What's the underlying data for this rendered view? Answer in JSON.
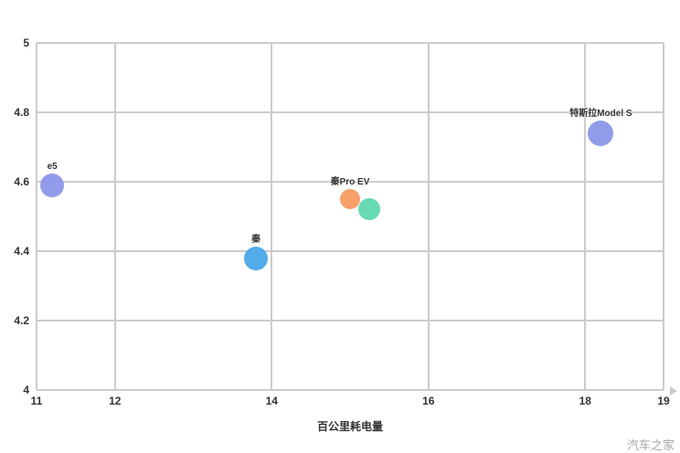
{
  "chart_data": {
    "type": "scatter",
    "title": "",
    "xlabel": "百公里耗电量",
    "ylabel": "",
    "xlim": [
      11,
      19
    ],
    "ylim": [
      4,
      5
    ],
    "grid": true,
    "legend_position": "none",
    "x_ticks": [
      {
        "label": "11",
        "value": 11
      },
      {
        "label": "12",
        "value": 12
      },
      {
        "label": "14",
        "value": 14
      },
      {
        "label": "16",
        "value": 16
      },
      {
        "label": "18",
        "value": 18
      },
      {
        "label": "19",
        "value": 19
      }
    ],
    "y_ticks": [
      {
        "label": "5",
        "value": 5.0
      },
      {
        "label": "4.8",
        "value": 4.8
      },
      {
        "label": "4.6",
        "value": 4.6
      },
      {
        "label": "4.4",
        "value": 4.4
      },
      {
        "label": "4.2",
        "value": 4.2
      },
      {
        "label": "4",
        "value": 4.0
      }
    ],
    "points": [
      {
        "label": "e5",
        "x": 11.2,
        "y": 4.59,
        "r": 13,
        "color": "#8c96e8"
      },
      {
        "label": "秦",
        "x": 13.8,
        "y": 4.38,
        "r": 13,
        "color": "#4aa6e8"
      },
      {
        "label": "秦Pro EV",
        "x": 15.0,
        "y": 4.55,
        "r": 11,
        "color": "#f79b61"
      },
      {
        "label": "",
        "x": 15.25,
        "y": 4.52,
        "r": 12,
        "color": "#5fd8b0"
      },
      {
        "label": "特斯拉Model S",
        "x": 18.2,
        "y": 4.74,
        "r": 14,
        "color": "#8c96e8"
      }
    ]
  },
  "watermark": "汽车之家",
  "style": {
    "grid_color": "#cccccc",
    "tick_color": "#333333",
    "background": "#ffffff"
  }
}
